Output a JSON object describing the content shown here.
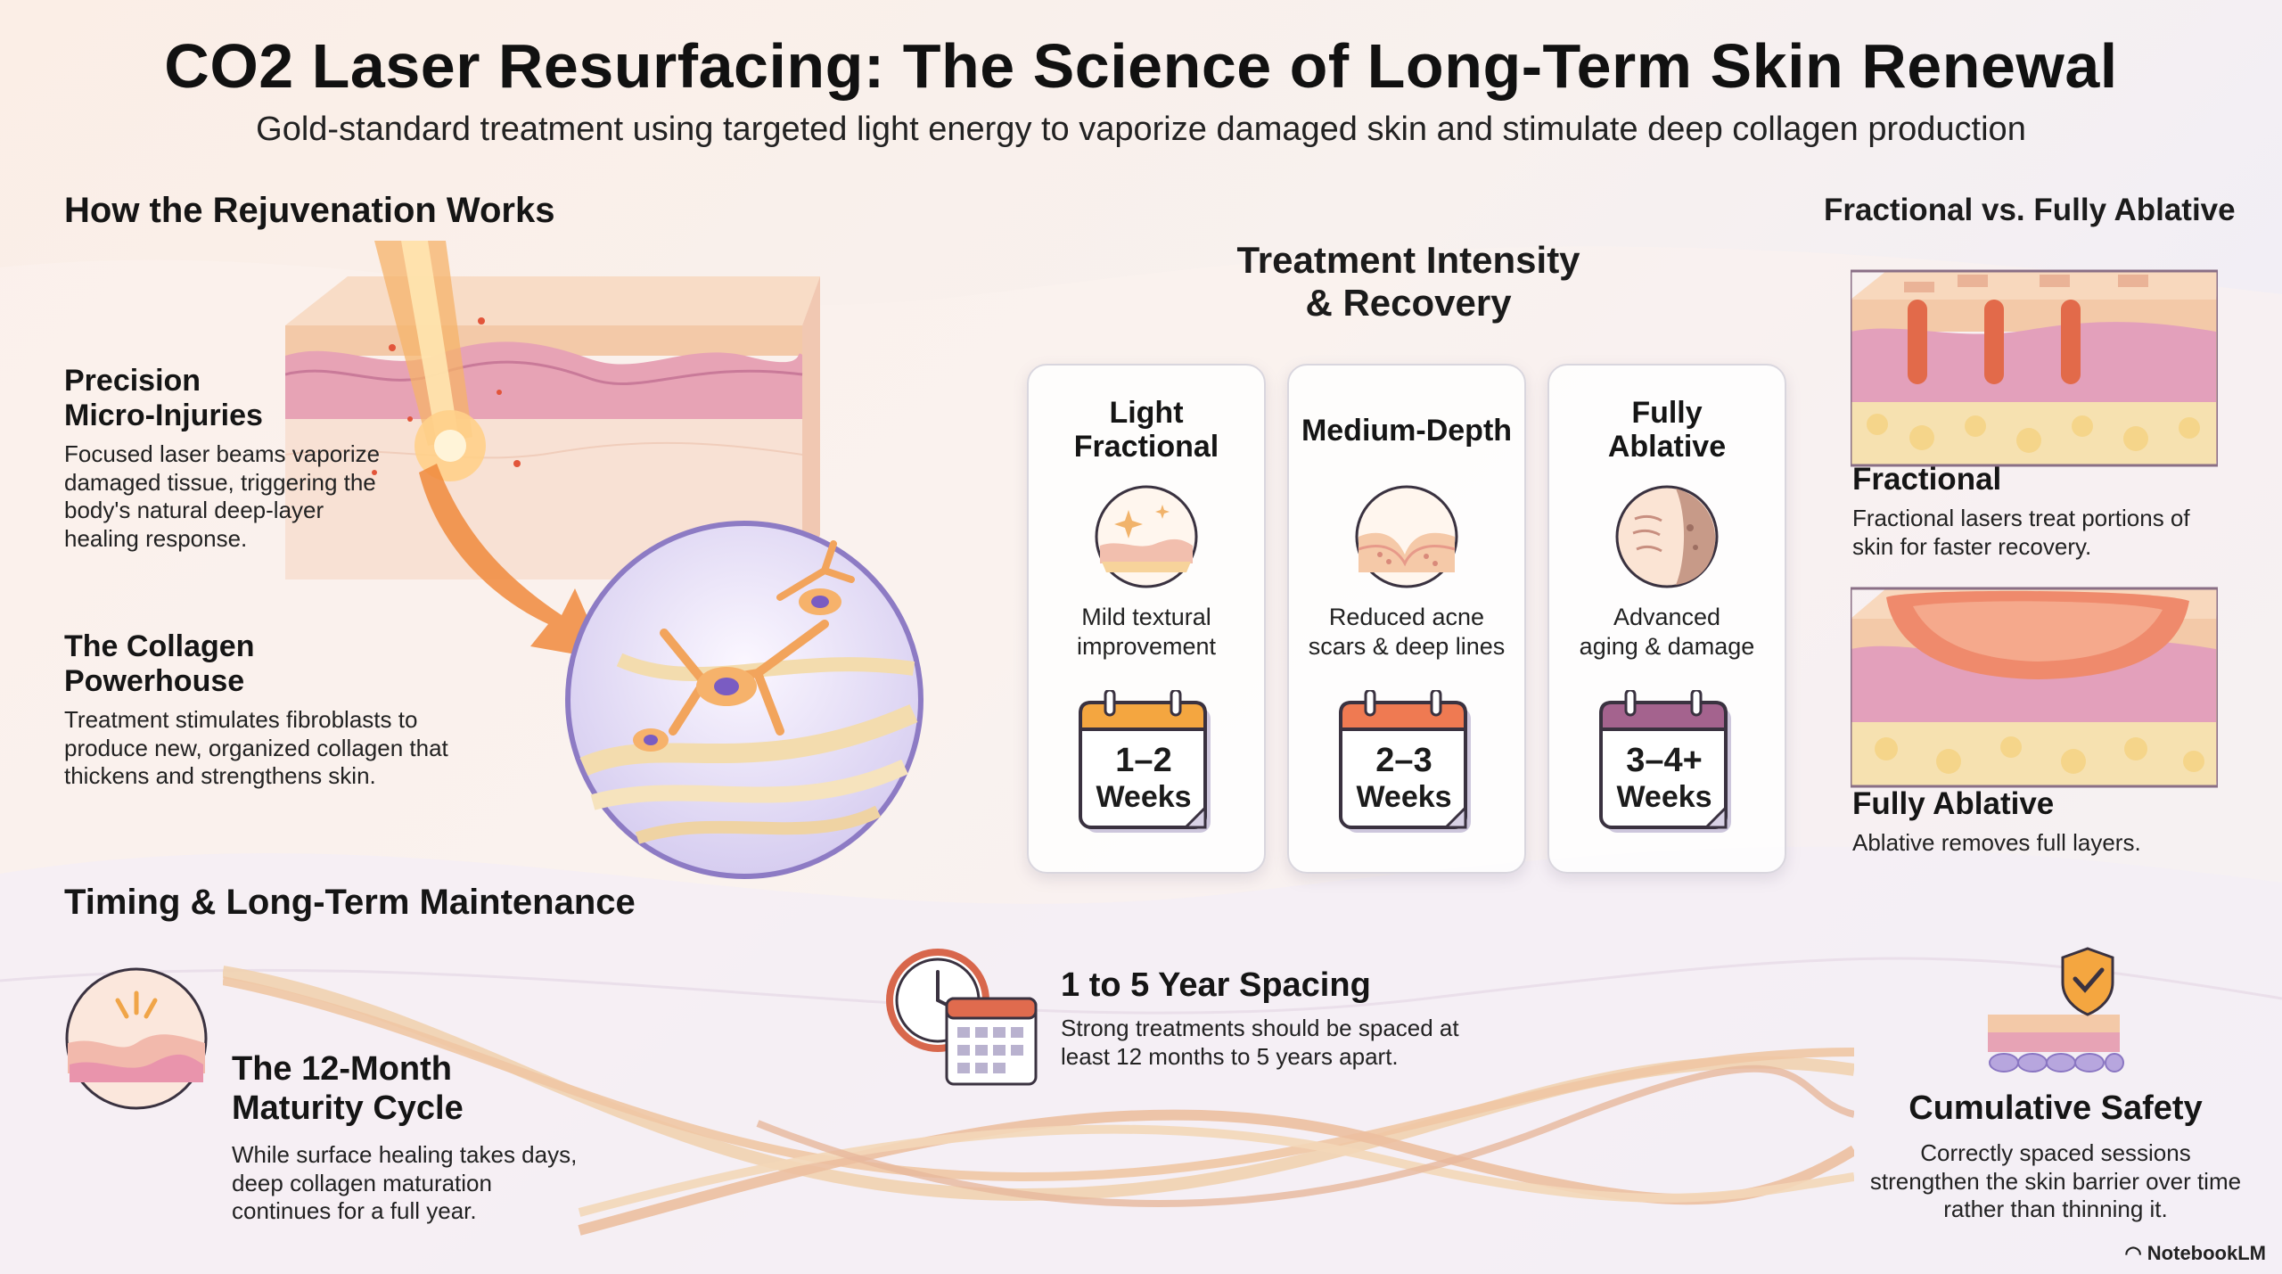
{
  "title": "CO2 Laser Resurfacing: The Science of Long-Term Skin Renewal",
  "subtitle": "Gold-standard treatment using targeted light energy to vaporize damaged skin and stimulate deep collagen production",
  "how": {
    "heading": "How the Rejuvenation Works",
    "precision_title": "Precision Micro-Injuries",
    "precision_title_l1": "Precision",
    "precision_title_l2": "Micro-Injuries",
    "precision_text": "Focused laser beams vaporize damaged tissue, triggering the body's natural deep-layer healing response.",
    "collagen_title_l1": "The Collagen",
    "collagen_title_l2": "Powerhouse",
    "collagen_text": "Treatment stimulates fibroblasts to produce new, organized collagen that thickens and strengthens skin."
  },
  "intensity": {
    "heading_l1": "Treatment Intensity",
    "heading_l2": "& Recovery",
    "cards": [
      {
        "title_l1": "Light",
        "title_l2": "Fractional",
        "desc_l1": "Mild textural",
        "desc_l2": "improvement",
        "weeks_num": "1–2",
        "weeks_label": "Weeks",
        "color": "#f4a640"
      },
      {
        "title_l1": "Medium-Depth",
        "title_l2": "",
        "desc_l1": "Reduced acne",
        "desc_l2": "scars & deep lines",
        "weeks_num": "2–3",
        "weeks_label": "Weeks",
        "color": "#ef7a52"
      },
      {
        "title_l1": "Fully",
        "title_l2": "Ablative",
        "desc_l1": "Advanced",
        "desc_l2": "aging & damage",
        "weeks_num": "3–4+",
        "weeks_label": "Weeks",
        "color": "#a4638e"
      }
    ]
  },
  "compare": {
    "heading": "Fractional vs. Fully Ablative",
    "fractional_title": "Fractional",
    "fractional_text": "Fractional lasers treat portions of skin for faster recovery.",
    "ablative_title": "Fully Ablative",
    "ablative_text": "Ablative removes full layers."
  },
  "timing": {
    "heading": "Timing & Long-Term Maintenance",
    "cycle_title_l1": "The 12-Month",
    "cycle_title_l2": "Maturity Cycle",
    "cycle_text": "While surface healing takes days, deep collagen maturation continues for a full year.",
    "spacing_title": "1 to 5 Year Spacing",
    "spacing_text": "Strong treatments should be spaced at least 12 months to 5 years apart.",
    "safety_title": "Cumulative Safety",
    "safety_text": "Correctly spaced sessions strengthen the skin barrier over time rather than thinning it."
  },
  "brand": "NotebookLM",
  "colors": {
    "skin": "#f3c9a8",
    "pink": "#e7a3b5",
    "fat": "#f5d88a",
    "violet": "#7a64c8",
    "orange": "#f28a3c"
  }
}
